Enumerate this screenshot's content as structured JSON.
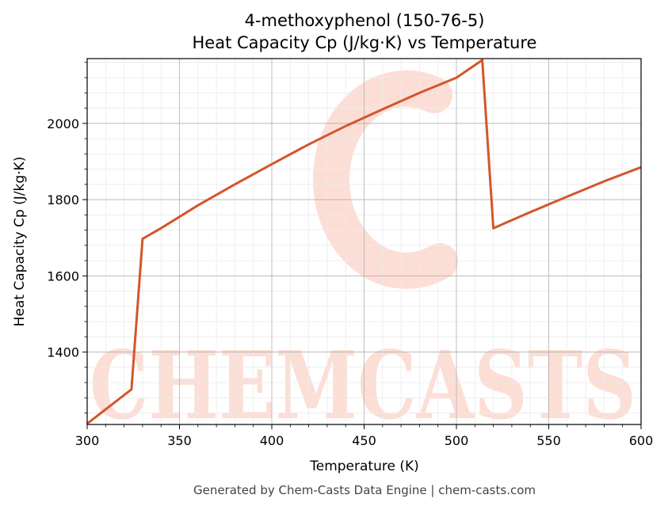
{
  "chart_data": {
    "type": "line",
    "title": "4-methoxyphenol (150-76-5)",
    "subtitle": "Heat Capacity Cp (J/kg·K) vs Temperature",
    "xlabel": "Temperature (K)",
    "ylabel": "Heat Capacity Cp (J/kg·K)",
    "xlim": [
      300,
      600
    ],
    "ylim": [
      1210,
      2170
    ],
    "x_ticks": [
      300,
      350,
      400,
      450,
      500,
      550,
      600
    ],
    "y_ticks": [
      1400,
      1600,
      1800,
      2000
    ],
    "grid": true,
    "series": [
      {
        "color": "#d4562b",
        "x": [
          300,
          324,
          330,
          340,
          360,
          380,
          400,
          420,
          440,
          460,
          480,
          500,
          514,
          520,
          540,
          560,
          580,
          600
        ],
        "y": [
          1212,
          1302,
          1697,
          1725,
          1785,
          1840,
          1893,
          1945,
          1993,
          2037,
          2080,
          2120,
          2166,
          1725,
          1767,
          1808,
          1848,
          1885
        ]
      }
    ]
  },
  "watermark": {
    "text": "CHEMCASTS",
    "color": "#fcd3c8"
  },
  "footer": "Generated by Chem-Casts Data Engine | chem-casts.com"
}
